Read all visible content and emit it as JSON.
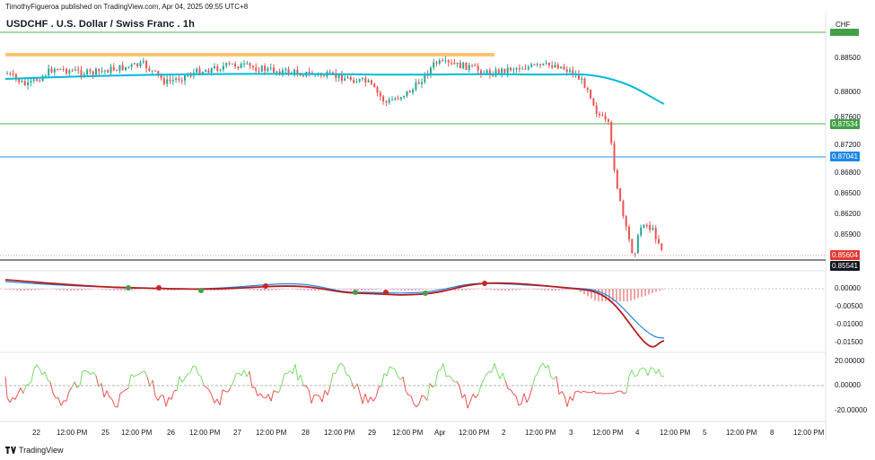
{
  "header": {
    "publisher_line": "TimothyFigueroa published on TradingView.com, Apr 04, 2025 09:55 UTC+8",
    "chart_title": "USDCHF . U.S. Dollar / Swiss Franc . 1h",
    "currency": "CHF"
  },
  "footer": {
    "brand": "TradingView"
  },
  "colors": {
    "candle_up": "#26a69a",
    "candle_down": "#ef5350",
    "ma_line": "#00bcd4",
    "resistance_zone": "#ffb74d",
    "green_level": "#4caf50",
    "blue_level": "#2196f3",
    "current_price": "#e53935"
  },
  "price_axis": {
    "labels": [
      "0.88500",
      "0.88000",
      "0.87600",
      "0.87200",
      "0.86800",
      "0.86500",
      "0.86200",
      "0.85900"
    ]
  },
  "price_tags": [
    {
      "value": "0.87534",
      "color": "#43a047"
    },
    {
      "value": "0.87041",
      "color": "#1e88e5"
    },
    {
      "value": "0.85604",
      "color": "#e53935"
    },
    {
      "value": "0.85541",
      "color": "#131722"
    }
  ],
  "macd_axis": {
    "labels": [
      "0.00000",
      "-0.00500",
      "-0.01000",
      "-0.01500"
    ]
  },
  "osc_axis": {
    "labels": [
      "20.00000",
      "0.00000",
      "-20.00000"
    ]
  },
  "time_axis": {
    "labels": [
      "22",
      "12:00 PM",
      "25",
      "12:00 PM",
      "26",
      "12:00 PM",
      "27",
      "12:00 PM",
      "28",
      "12:00 PM",
      "29",
      "12:00 PM",
      "Apr",
      "12:00 PM",
      "2",
      "12:00 PM",
      "3",
      "12:00 PM",
      "4",
      "12:00 PM",
      "5",
      "12:00 PM",
      "8",
      "12:00 PM"
    ]
  }
}
